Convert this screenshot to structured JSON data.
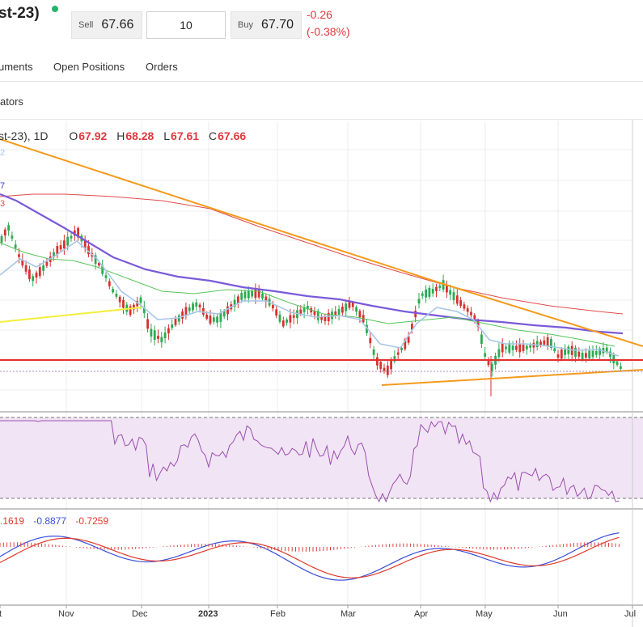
{
  "header": {
    "title": "st-23)",
    "sell_label": "Sell",
    "sell_price": "67.66",
    "quantity": "10",
    "buy_label": "Buy",
    "buy_price": "67.70",
    "change": "-0.26",
    "change_pct": "(-0.38%)",
    "colors": {
      "live": "#26b36b",
      "negative": "#e0383e"
    }
  },
  "tabs": [
    "uments",
    "Open Positions",
    "Orders"
  ],
  "indicators_label": "ators",
  "ohlc": {
    "symbol_suffix": "st-23), 1D",
    "o_label": "O",
    "o": "67.92",
    "h_label": "H",
    "h": "68.28",
    "l_label": "L",
    "l": "67.61",
    "c_label": "C",
    "c": "67.66"
  },
  "ma_tags": {
    "light": "2",
    "purple": "7",
    "red": "3"
  },
  "macd_values": {
    "hist": ".1619",
    "macd": "-0.8877",
    "signal": "-0.7259"
  },
  "chart_data": [
    {
      "type": "candlestick",
      "x_ticks": [
        "t",
        "Nov",
        "Dec",
        "2023",
        "Feb",
        "Mar",
        "Apr",
        "May",
        "Jun",
        "Jul"
      ],
      "ohlc_last": {
        "open": 67.92,
        "high": 68.28,
        "low": 67.61,
        "close": 67.66
      },
      "horizontal_line_color": "#e62e2e",
      "trendline_color": "#f59a1c",
      "support_line_color": "#f4ee3a",
      "ma_colors": [
        "#7a5ad8",
        "#e04b4b",
        "#a9c6e6",
        "#57c45a"
      ]
    },
    {
      "type": "line",
      "name": "RSI",
      "band_color": "#f1e4f4",
      "line_color": "#9b4fb0"
    },
    {
      "type": "bar",
      "name": "MACD",
      "macd_color": "#3a4fd8",
      "signal_color": "#e03a2a",
      "hist_color": "#e04040"
    }
  ]
}
